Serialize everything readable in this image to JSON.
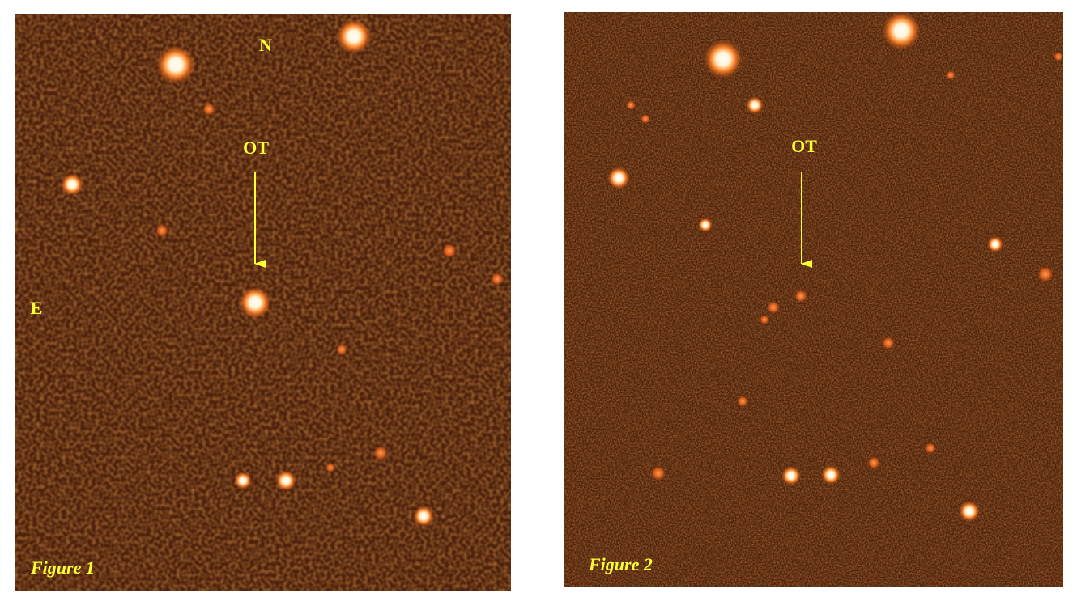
{
  "panels": [
    {
      "caption": "Figure 1",
      "north": "N",
      "east": "E",
      "target": "OT"
    },
    {
      "caption": "Figure 2",
      "target": "OT"
    }
  ]
}
